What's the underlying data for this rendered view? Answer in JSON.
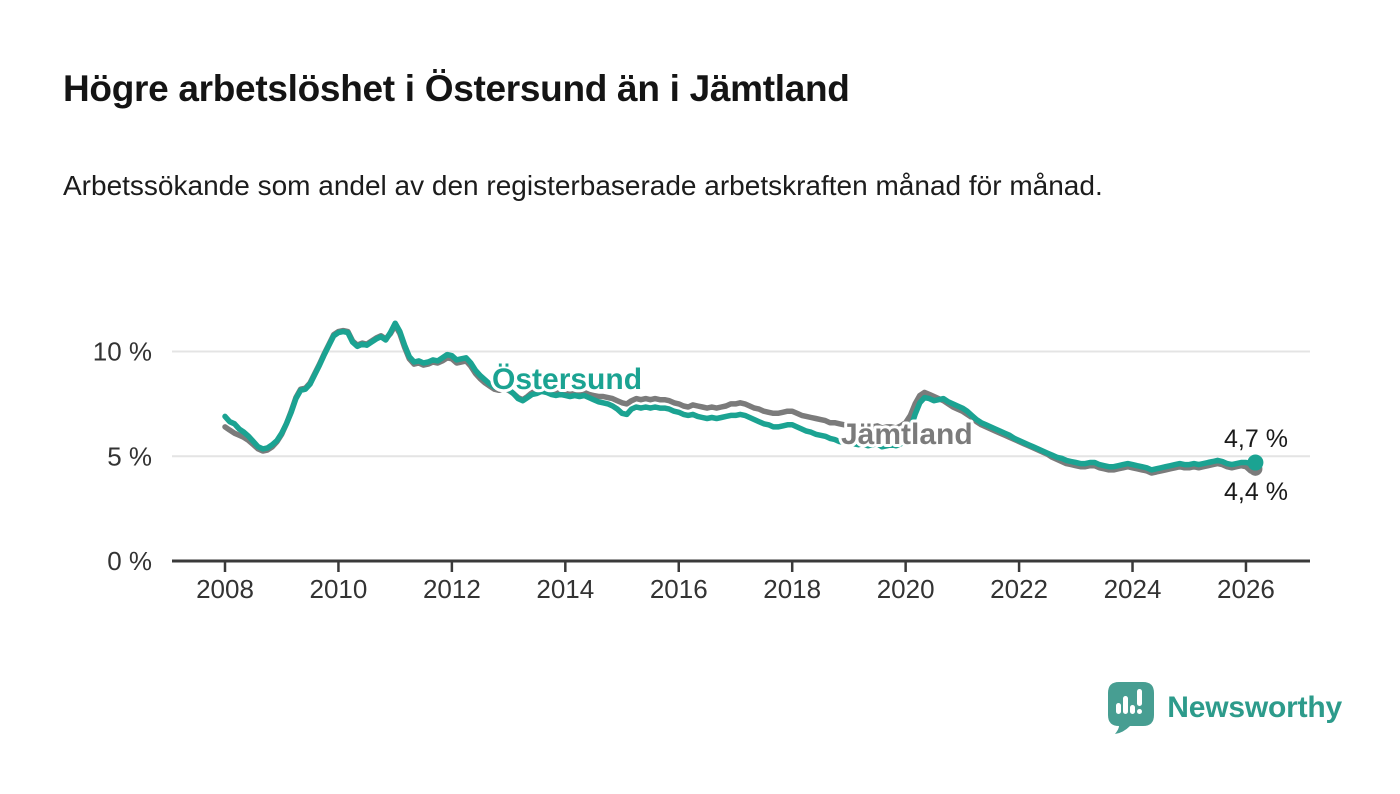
{
  "title": "Högre arbetslöshet i Östersund än i Jämtland",
  "subtitle": "Arbetssökande som andel av den registerbaserade arbetskraften månad för månad.",
  "branding": {
    "name": "Newsworthy",
    "icon": "newsworthy-speech-bubble-bar-chart-icon",
    "text_color": "#2d9b8b",
    "icon_color": "#479e92"
  },
  "chart_data": {
    "type": "line",
    "title": "Högre arbetslöshet i Östersund än i Jämtland",
    "subtitle": "Arbetssökande som andel av den registerbaserade arbetskraften månad för månad.",
    "unit": "percent",
    "frequency": "monthly",
    "grid": "horizontal",
    "x_axis": {
      "range": [
        2007.05,
        2027.1
      ],
      "tick_years": [
        2008,
        2010,
        2012,
        2014,
        2016,
        2018,
        2020,
        2022,
        2024,
        2026
      ],
      "tick_labels": [
        "2008",
        "2010",
        "2012",
        "2014",
        "2016",
        "2018",
        "2020",
        "2022",
        "2024",
        "2026"
      ]
    },
    "y_axis": {
      "range": [
        0,
        11.9
      ],
      "ticks": [
        0,
        5,
        10
      ],
      "tick_labels": [
        "0 %",
        "5 %",
        "10 %"
      ]
    },
    "series": [
      {
        "name": "Jämtland",
        "color": "#7b7b7b",
        "end_label": "4,4 %",
        "end_dot": true,
        "start_year": 2008,
        "points_per_year": 12,
        "values": [
          6.4,
          6.25,
          6.1,
          6.0,
          5.9,
          5.75,
          5.55,
          5.35,
          5.25,
          5.3,
          5.45,
          5.7,
          6.05,
          6.55,
          7.15,
          7.8,
          8.2,
          8.25,
          8.5,
          8.95,
          9.4,
          9.9,
          10.35,
          10.8,
          10.95,
          11.0,
          10.95,
          10.5,
          10.3,
          10.4,
          10.35,
          10.5,
          10.65,
          10.75,
          10.6,
          10.85,
          11.25,
          10.85,
          10.2,
          9.65,
          9.4,
          9.45,
          9.35,
          9.4,
          9.5,
          9.45,
          9.55,
          9.7,
          9.65,
          9.45,
          9.5,
          9.55,
          9.3,
          8.95,
          8.7,
          8.5,
          8.35,
          8.2,
          8.15,
          8.25,
          8.15,
          8.0,
          7.8,
          7.7,
          7.85,
          8.05,
          8.1,
          8.2,
          8.15,
          8.05,
          8.0,
          8.05,
          8.0,
          7.95,
          8.0,
          7.95,
          8.05,
          7.95,
          7.9,
          7.85,
          7.85,
          7.8,
          7.75,
          7.65,
          7.55,
          7.5,
          7.65,
          7.75,
          7.7,
          7.75,
          7.7,
          7.75,
          7.7,
          7.7,
          7.65,
          7.55,
          7.5,
          7.4,
          7.35,
          7.45,
          7.4,
          7.35,
          7.3,
          7.35,
          7.3,
          7.35,
          7.4,
          7.5,
          7.5,
          7.55,
          7.5,
          7.4,
          7.3,
          7.25,
          7.15,
          7.1,
          7.05,
          7.05,
          7.1,
          7.15,
          7.15,
          7.05,
          6.95,
          6.9,
          6.85,
          6.8,
          6.75,
          6.7,
          6.6,
          6.6,
          6.55,
          6.5,
          6.5,
          6.45,
          6.4,
          6.45,
          6.4,
          6.4,
          6.45,
          6.35,
          6.4,
          6.4,
          6.35,
          6.45,
          6.6,
          6.95,
          7.5,
          7.9,
          8.05,
          7.95,
          7.85,
          7.75,
          7.65,
          7.5,
          7.35,
          7.25,
          7.15,
          7.0,
          6.85,
          6.65,
          6.5,
          6.4,
          6.3,
          6.2,
          6.1,
          6.0,
          5.9,
          5.8,
          5.7,
          5.6,
          5.5,
          5.4,
          5.3,
          5.2,
          5.1,
          4.95,
          4.85,
          4.75,
          4.65,
          4.6,
          4.55,
          4.5,
          4.5,
          4.55,
          4.55,
          4.45,
          4.4,
          4.35,
          4.35,
          4.4,
          4.45,
          4.5,
          4.45,
          4.4,
          4.35,
          4.3,
          4.2,
          4.25,
          4.3,
          4.35,
          4.4,
          4.45,
          4.5,
          4.45,
          4.45,
          4.5,
          4.45,
          4.5,
          4.55,
          4.6,
          4.65,
          4.6,
          4.5,
          4.45,
          4.5,
          4.55,
          4.5,
          4.3,
          4.4
        ]
      },
      {
        "name": "Östersund",
        "color": "#1ba392",
        "end_label": "4,7 %",
        "end_dot": true,
        "start_year": 2008,
        "points_per_year": 12,
        "values": [
          6.9,
          6.65,
          6.55,
          6.3,
          6.15,
          5.95,
          5.7,
          5.45,
          5.35,
          5.4,
          5.55,
          5.75,
          6.1,
          6.55,
          7.1,
          7.75,
          8.15,
          8.2,
          8.45,
          8.9,
          9.35,
          9.85,
          10.3,
          10.75,
          10.9,
          10.95,
          10.9,
          10.45,
          10.25,
          10.35,
          10.3,
          10.45,
          10.6,
          10.7,
          10.55,
          10.9,
          11.35,
          10.95,
          10.3,
          9.75,
          9.5,
          9.55,
          9.45,
          9.5,
          9.6,
          9.55,
          9.7,
          9.85,
          9.8,
          9.6,
          9.65,
          9.7,
          9.45,
          9.1,
          8.85,
          8.65,
          8.45,
          8.3,
          8.25,
          8.3,
          8.2,
          8.0,
          7.75,
          7.65,
          7.8,
          7.95,
          8.0,
          8.1,
          8.05,
          7.95,
          7.9,
          7.95,
          7.9,
          7.85,
          7.9,
          7.85,
          7.9,
          7.8,
          7.7,
          7.6,
          7.55,
          7.5,
          7.4,
          7.25,
          7.05,
          7.0,
          7.25,
          7.35,
          7.3,
          7.35,
          7.3,
          7.35,
          7.3,
          7.3,
          7.25,
          7.15,
          7.1,
          7.0,
          6.95,
          7.0,
          6.9,
          6.85,
          6.8,
          6.85,
          6.8,
          6.85,
          6.9,
          6.95,
          6.95,
          7.0,
          6.95,
          6.85,
          6.75,
          6.65,
          6.55,
          6.5,
          6.4,
          6.4,
          6.45,
          6.5,
          6.5,
          6.4,
          6.3,
          6.2,
          6.15,
          6.05,
          6.0,
          5.95,
          5.85,
          5.8,
          5.7,
          5.65,
          5.65,
          5.6,
          5.55,
          5.6,
          5.5,
          5.55,
          5.6,
          5.45,
          5.5,
          5.55,
          5.5,
          5.6,
          5.8,
          6.3,
          7.0,
          7.55,
          7.8,
          7.75,
          7.65,
          7.7,
          7.75,
          7.6,
          7.5,
          7.4,
          7.3,
          7.15,
          6.95,
          6.75,
          6.6,
          6.5,
          6.4,
          6.3,
          6.2,
          6.1,
          6.0,
          5.85,
          5.75,
          5.65,
          5.55,
          5.45,
          5.35,
          5.25,
          5.15,
          5.05,
          4.95,
          4.9,
          4.8,
          4.75,
          4.7,
          4.65,
          4.65,
          4.7,
          4.7,
          4.6,
          4.55,
          4.5,
          4.5,
          4.55,
          4.6,
          4.65,
          4.6,
          4.55,
          4.5,
          4.45,
          4.35,
          4.4,
          4.45,
          4.5,
          4.55,
          4.6,
          4.65,
          4.6,
          4.6,
          4.65,
          4.6,
          4.65,
          4.7,
          4.75,
          4.8,
          4.75,
          4.65,
          4.6,
          4.65,
          4.7,
          4.7,
          4.65,
          4.7
        ]
      }
    ],
    "style": {
      "grid_color": "#e4e4e4",
      "axis_color": "#3a3a3a",
      "tick_label_color": "#333333",
      "end_label_color": "#1a1a1a"
    }
  }
}
